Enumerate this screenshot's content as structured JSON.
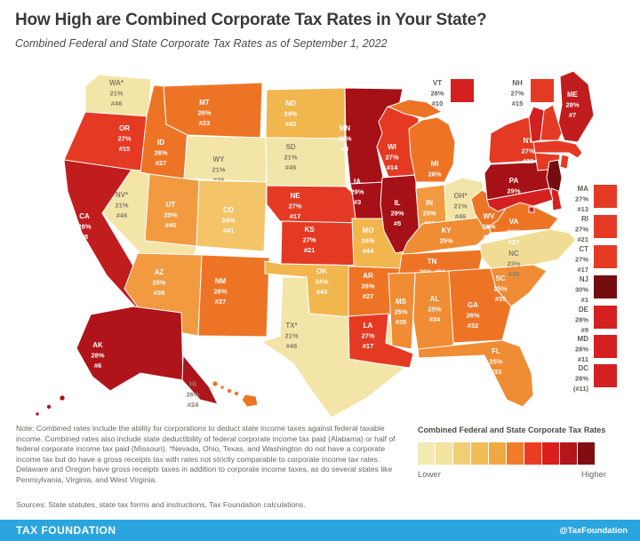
{
  "title": "How High are Combined Corporate Tax Rates in Your State?",
  "subtitle": "Combined Federal and State Corporate Tax Rates as of September 1, 2022",
  "map": {
    "states": [
      {
        "code": "WA*",
        "rate": "21%",
        "rank": "#46",
        "color": "#F3E5A7"
      },
      {
        "code": "OR",
        "rate": "27%",
        "rank": "#15",
        "color": "#E43A23"
      },
      {
        "code": "CA",
        "rate": "28%",
        "rank": "#8",
        "color": "#C11C1E"
      },
      {
        "code": "NV*",
        "rate": "21%",
        "rank": "#46",
        "color": "#F3E5A7"
      },
      {
        "code": "ID",
        "rate": "26%",
        "rank": "#27",
        "color": "#EE7425"
      },
      {
        "code": "MT",
        "rate": "26%",
        "rank": "#23",
        "color": "#EE7425"
      },
      {
        "code": "WY",
        "rate": "21%",
        "rank": "#46",
        "color": "#F3E5A7"
      },
      {
        "code": "UT",
        "rate": "25%",
        "rank": "#40",
        "color": "#F29A40"
      },
      {
        "code": "CO",
        "rate": "24%",
        "rank": "#41",
        "color": "#F4C468"
      },
      {
        "code": "AZ",
        "rate": "25%",
        "rank": "#38",
        "color": "#F29A40"
      },
      {
        "code": "NM",
        "rate": "26%",
        "rank": "#27",
        "color": "#EE7425"
      },
      {
        "code": "ND",
        "rate": "24%",
        "rank": "#42",
        "color": "#F2B64F"
      },
      {
        "code": "SD",
        "rate": "21%",
        "rank": "#46",
        "color": "#F3E5A7"
      },
      {
        "code": "NE",
        "rate": "27%",
        "rank": "#17",
        "color": "#E43A23"
      },
      {
        "code": "KS",
        "rate": "27%",
        "rank": "#21",
        "color": "#E43A23"
      },
      {
        "code": "OK",
        "rate": "24%",
        "rank": "#43",
        "color": "#F2B64F"
      },
      {
        "code": "TX*",
        "rate": "21%",
        "rank": "#46",
        "color": "#F3E5A7"
      },
      {
        "code": "MN",
        "rate": "29%",
        "rank": "#3",
        "color": "#A51117"
      },
      {
        "code": "IA",
        "rate": "29%",
        "rank": "#3",
        "color": "#A51117"
      },
      {
        "code": "MO",
        "rate": "24%",
        "rank": "#44",
        "color": "#F2B64F"
      },
      {
        "code": "AR",
        "rate": "26%",
        "rank": "#27",
        "color": "#EE7425"
      },
      {
        "code": "LA",
        "rate": "27%",
        "rank": "#17",
        "color": "#E43A23"
      },
      {
        "code": "WI",
        "rate": "27%",
        "rank": "#14",
        "color": "#E43A23"
      },
      {
        "code": "IL",
        "rate": "29%",
        "rank": "#5",
        "color": "#A51117"
      },
      {
        "code": "IN",
        "rate": "25%",
        "rank": "#38",
        "color": "#F29A40"
      },
      {
        "code": "MI",
        "rate": "26%",
        "rank": "#27",
        "color": "#EE7425"
      },
      {
        "code": "OH*",
        "rate": "21%",
        "rank": "#46",
        "color": "#F3E5A7"
      },
      {
        "code": "KY",
        "rate": "25%",
        "rank": "#35",
        "color": "#F08C33"
      },
      {
        "code": "TN",
        "rate": "26%",
        "rank": "#24",
        "color": "#EE7425"
      },
      {
        "code": "MS",
        "rate": "25%",
        "rank": "#35",
        "color": "#F08C33"
      },
      {
        "code": "AL",
        "rate": "25%",
        "rank": "#34",
        "color": "#F08C33"
      },
      {
        "code": "GA",
        "rate": "26%",
        "rank": "#32",
        "color": "#EE7425"
      },
      {
        "code": "FL",
        "rate": "25%",
        "rank": "#33",
        "color": "#F08C33"
      },
      {
        "code": "SC",
        "rate": "25%",
        "rank": "#35",
        "color": "#F08C33"
      },
      {
        "code": "NC",
        "rate": "23%",
        "rank": "#45",
        "color": "#F0DC94"
      },
      {
        "code": "VA",
        "rate": "26%",
        "rank": "#27",
        "color": "#EE7425"
      },
      {
        "code": "WV",
        "rate": "26%",
        "rank": "#24",
        "color": "#EE7425"
      },
      {
        "code": "PA",
        "rate": "29%",
        "rank": "#2",
        "color": "#A51117"
      },
      {
        "code": "NY",
        "rate": "27%",
        "rank": "#20",
        "color": "#E43A23"
      },
      {
        "code": "ME",
        "rate": "28%",
        "rank": "#7",
        "color": "#C11C1E"
      },
      {
        "code": "VT",
        "rate": "28%",
        "rank": "#10",
        "color": "#D42020"
      },
      {
        "code": "NH",
        "rate": "27%",
        "rank": "#15",
        "color": "#E43A23"
      },
      {
        "code": "MA",
        "rate": "27%",
        "rank": "#13",
        "color": "#E43A23"
      },
      {
        "code": "RI",
        "rate": "27%",
        "rank": "#21",
        "color": "#E43A23"
      },
      {
        "code": "CT",
        "rate": "27%",
        "rank": "#17",
        "color": "#E43A23"
      },
      {
        "code": "NJ",
        "rate": "30%",
        "rank": "#1",
        "color": "#740D10"
      },
      {
        "code": "DE",
        "rate": "28%",
        "rank": "#9",
        "color": "#D42020"
      },
      {
        "code": "MD",
        "rate": "28%",
        "rank": "#11",
        "color": "#D42020"
      },
      {
        "code": "DC",
        "rate": "28%",
        "rank": "(#11)",
        "color": "#D42020"
      },
      {
        "code": "AK",
        "rate": "28%",
        "rank": "#6",
        "color": "#AE1419"
      },
      {
        "code": "HI",
        "rate": "26%",
        "rank": "#24",
        "color": "#EE7425"
      }
    ],
    "callouts": [
      "VT",
      "NH",
      "MA",
      "RI",
      "CT",
      "NJ",
      "DE",
      "MD",
      "DC"
    ]
  },
  "legend": {
    "title": "Combined Federal and State Corporate Tax Rates",
    "lower_label": "Lower",
    "higher_label": "Higher",
    "swatches": [
      "#F3EAB4",
      "#F3E3A0",
      "#F0CE74",
      "#F2BC55",
      "#F0A843",
      "#F07D2A",
      "#EA3C22",
      "#DB1D1C",
      "#B2151A",
      "#7E0E12"
    ]
  },
  "note": "Note: Combined rates include the ability for corporations to deduct state income taxes against federal taxable income. Combined rates also include state deductibility of federal corporate income tax paid (Alabama) or half of federal corporate income tax paid (Missouri). *Nevada, Ohio, Texas, and Washington do not have a corporate income tax but do have a gross receipts tax with rates not strictly comparable to corporate income tax rates. Delaware and Oregon have gross receipts taxes in addition to corporate income taxes, as do several states like Pennsylvania, Virginia, and West Virginia.",
  "sources": "Sources: State statutes, state tax forms and instructions, Tax Foundation calculations.",
  "footer": {
    "brand": "TAX FOUNDATION",
    "handle": "@TaxFoundation",
    "bar_color": "#2BA5DF"
  }
}
